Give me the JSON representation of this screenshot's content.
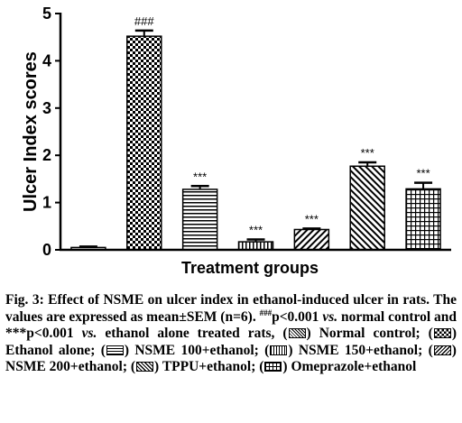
{
  "chart_data": {
    "type": "bar",
    "title": "",
    "xlabel": "Treatment groups",
    "ylabel": "Ulcer Index scores",
    "ylim": [
      0,
      5
    ],
    "yticks": [
      "0",
      "1",
      "2",
      "3",
      "4",
      "5"
    ],
    "categories": [
      "Normal control",
      "Ethanol alone",
      "NSME 100+ethanol",
      "NSME 150+ethanol",
      "NSME 200+ethanol",
      "TPPU+ethanol",
      "Omeprazole+ethanol"
    ],
    "values": [
      0.05,
      4.52,
      1.28,
      0.17,
      0.43,
      1.77,
      1.29
    ],
    "errors": [
      0.02,
      0.12,
      0.07,
      0.05,
      0.02,
      0.08,
      0.13
    ],
    "annotations": [
      "",
      "###",
      "***",
      "***",
      "***",
      "***",
      "***"
    ],
    "patterns": [
      "dots",
      "checker",
      "horizontal-lines",
      "vertical-lines",
      "diagonal-lines",
      "diagonal-lines-reverse",
      "grid"
    ]
  },
  "caption": {
    "fig_label": "Fig. 3:",
    "text_1": "Effect of NSME on ulcer index in ethanol-induced ulcer in rats. The values are expressed as mean±SEM (n=6).",
    "sup_1": "###",
    "text_2": "p<0.001",
    "vs_1": "vs.",
    "text_3": "normal control and ***p<0.001",
    "vs_2": "vs.",
    "text_4": "ethanol alone treated rats, (",
    "legend": [
      {
        "label": "Normal control;",
        "pattern": "dots"
      },
      {
        "label": "Ethanol alone;",
        "pattern": "checker"
      },
      {
        "label": "NSME 100+ethanol;",
        "pattern": "horizontal-lines"
      },
      {
        "label": "NSME 150+ethanol;",
        "pattern": "vertical-lines"
      },
      {
        "label": "NSME 200+ethanol;",
        "pattern": "diagonal-lines"
      },
      {
        "label": "TPPU+ethanol;",
        "pattern": "diagonal-lines-reverse"
      },
      {
        "label": "Omeprazole+ethanol",
        "pattern": "grid"
      }
    ]
  }
}
